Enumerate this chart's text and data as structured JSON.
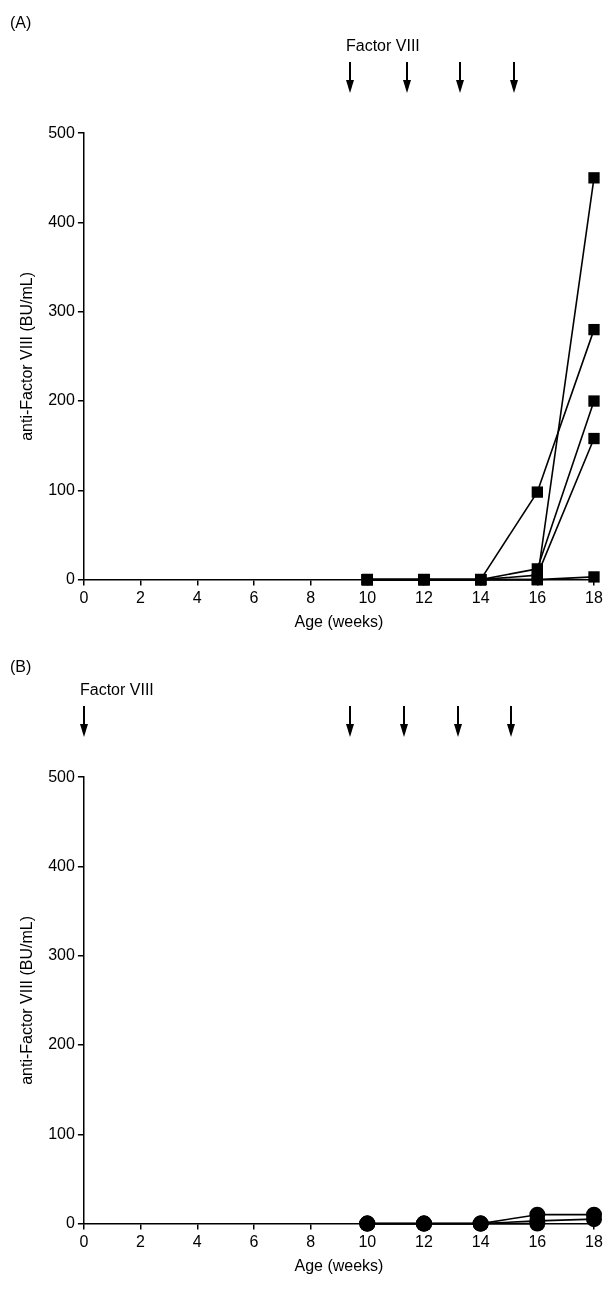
{
  "chart_data": [
    {
      "type": "line",
      "title": "(A)",
      "xlabel": "Age (weeks)",
      "ylabel": "anti-Factor VIII (BU/mL)",
      "x": [
        10,
        12,
        14,
        16,
        18
      ],
      "series": [
        {
          "color": "#000000",
          "values": [
            0,
            0,
            0,
            98,
            280
          ]
        },
        {
          "color": "#000000",
          "values": [
            0,
            0,
            0,
            0,
            450
          ]
        },
        {
          "color": "#000000",
          "values": [
            0,
            0,
            0,
            12,
            200
          ]
        },
        {
          "color": "#000000",
          "values": [
            0,
            0,
            0,
            5,
            158
          ]
        },
        {
          "color": "#000000",
          "values": [
            0,
            0,
            0,
            0,
            3
          ]
        }
      ],
      "xlim": [
        0,
        18
      ],
      "xticks": [
        0,
        2,
        4,
        6,
        8,
        10,
        12,
        14,
        16,
        18
      ],
      "ylim": [
        0,
        500
      ],
      "yticks": [
        0,
        100,
        200,
        300,
        400,
        500
      ],
      "marker": "square",
      "grid": false,
      "legend": false,
      "annotations": [
        "Factor VIII"
      ]
    },
    {
      "type": "line",
      "title": "(B)",
      "xlabel": "Age (weeks)",
      "ylabel": "anti-Factor VIII (BU/mL)",
      "x": [
        10,
        12,
        14,
        16,
        18
      ],
      "series": [
        {
          "color": "#000000",
          "values": [
            0,
            0,
            0,
            10,
            10
          ]
        },
        {
          "color": "#000000",
          "values": [
            0,
            0,
            0,
            3,
            5
          ]
        },
        {
          "color": "#000000",
          "values": [
            0,
            0,
            0,
            0,
            null
          ]
        }
      ],
      "xlim": [
        0,
        18
      ],
      "xticks": [
        0,
        2,
        4,
        6,
        8,
        10,
        12,
        14,
        16,
        18
      ],
      "ylim": [
        0,
        500
      ],
      "yticks": [
        0,
        100,
        200,
        300,
        400,
        500
      ],
      "marker": "circle",
      "grid": false,
      "legend": false,
      "annotations": [
        "Factor VIII"
      ]
    }
  ]
}
